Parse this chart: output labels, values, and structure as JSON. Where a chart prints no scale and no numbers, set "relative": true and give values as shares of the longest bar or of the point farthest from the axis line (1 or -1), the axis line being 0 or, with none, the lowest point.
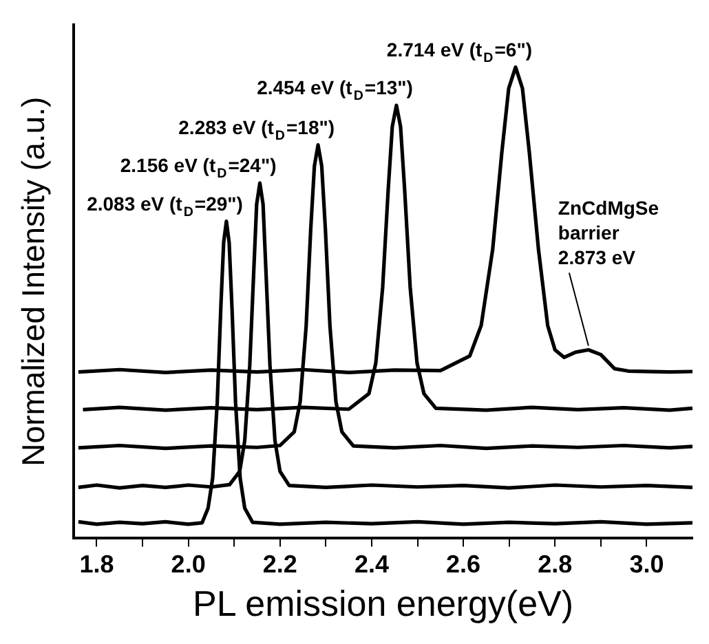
{
  "chart_data": {
    "type": "line",
    "relative": true,
    "xlabel": "PL emission energy(eV)",
    "ylabel": "Normalized Intensity (a.u.)",
    "xlim": [
      1.75,
      3.1
    ],
    "xticks": [
      {
        "value": 1.8,
        "label": "1.8"
      },
      {
        "value": 1.9,
        "label": null
      },
      {
        "value": 2.0,
        "label": "2.0"
      },
      {
        "value": 2.1,
        "label": null
      },
      {
        "value": 2.2,
        "label": "2.2"
      },
      {
        "value": 2.3,
        "label": null
      },
      {
        "value": 2.4,
        "label": "2.4"
      },
      {
        "value": 2.5,
        "label": null
      },
      {
        "value": 2.6,
        "label": "2.6"
      },
      {
        "value": 2.7,
        "label": null
      },
      {
        "value": 2.8,
        "label": "2.8"
      },
      {
        "value": 2.9,
        "label": null
      },
      {
        "value": 3.0,
        "label": "3.0"
      }
    ],
    "grid": false,
    "legend": false,
    "marker": "none",
    "line_style": "solid",
    "series": [
      {
        "color": "#000000",
        "x": [
          1.76,
          1.8,
          1.85,
          1.9,
          1.95,
          2.0,
          2.03,
          2.043,
          2.053,
          2.063,
          2.071,
          2.077,
          2.083,
          2.089,
          2.095,
          2.103,
          2.113,
          2.123,
          2.14,
          2.2,
          2.3,
          2.4,
          2.5,
          2.6,
          2.7,
          2.8,
          2.9,
          3.0,
          3.1
        ],
        "values": [
          0.035,
          0.03,
          0.034,
          0.031,
          0.035,
          0.03,
          0.033,
          0.064,
          0.128,
          0.288,
          0.494,
          0.628,
          0.673,
          0.628,
          0.494,
          0.288,
          0.128,
          0.064,
          0.034,
          0.03,
          0.034,
          0.031,
          0.035,
          0.03,
          0.034,
          0.031,
          0.035,
          0.03,
          0.033
        ]
      },
      {
        "color": "#000000",
        "x": [
          1.76,
          1.8,
          1.85,
          1.9,
          1.95,
          2.0,
          2.05,
          2.09,
          2.112,
          2.123,
          2.134,
          2.143,
          2.149,
          2.156,
          2.163,
          2.169,
          2.178,
          2.189,
          2.2,
          2.22,
          2.3,
          2.4,
          2.5,
          2.6,
          2.7,
          2.8,
          2.9,
          3.0,
          3.1
        ],
        "values": [
          0.108,
          0.113,
          0.107,
          0.112,
          0.108,
          0.113,
          0.109,
          0.114,
          0.142,
          0.207,
          0.368,
          0.574,
          0.709,
          0.754,
          0.709,
          0.574,
          0.368,
          0.207,
          0.142,
          0.112,
          0.108,
          0.113,
          0.109,
          0.112,
          0.107,
          0.113,
          0.109,
          0.112,
          0.108
        ]
      },
      {
        "color": "#000000",
        "x": [
          1.76,
          1.85,
          1.95,
          2.05,
          2.15,
          2.2,
          2.231,
          2.244,
          2.257,
          2.267,
          2.275,
          2.283,
          2.291,
          2.299,
          2.309,
          2.322,
          2.335,
          2.36,
          2.45,
          2.55,
          2.65,
          2.75,
          2.85,
          2.95,
          3.05,
          3.1
        ],
        "values": [
          0.192,
          0.197,
          0.191,
          0.196,
          0.193,
          0.197,
          0.226,
          0.29,
          0.45,
          0.656,
          0.79,
          0.835,
          0.79,
          0.656,
          0.45,
          0.29,
          0.226,
          0.196,
          0.192,
          0.197,
          0.191,
          0.196,
          0.193,
          0.197,
          0.192,
          0.195
        ]
      },
      {
        "color": "#000000",
        "x": [
          1.77,
          1.85,
          1.95,
          2.05,
          2.15,
          2.25,
          2.35,
          2.394,
          2.409,
          2.424,
          2.436,
          2.445,
          2.454,
          2.463,
          2.472,
          2.484,
          2.499,
          2.514,
          2.54,
          2.65,
          2.75,
          2.85,
          2.95,
          3.05,
          3.1
        ],
        "values": [
          0.273,
          0.278,
          0.272,
          0.277,
          0.273,
          0.278,
          0.274,
          0.307,
          0.372,
          0.533,
          0.739,
          0.874,
          0.919,
          0.874,
          0.739,
          0.533,
          0.372,
          0.307,
          0.276,
          0.272,
          0.278,
          0.273,
          0.277,
          0.272,
          0.276
        ]
      },
      {
        "color": "#000000",
        "x": [
          1.76,
          1.85,
          1.95,
          2.05,
          2.15,
          2.25,
          2.35,
          2.45,
          2.55,
          2.614,
          2.639,
          2.664,
          2.684,
          2.699,
          2.714,
          2.729,
          2.744,
          2.764,
          2.784,
          2.8,
          2.82,
          2.845,
          2.873,
          2.9,
          2.93,
          2.96,
          3.05,
          3.1
        ],
        "values": [
          0.353,
          0.358,
          0.352,
          0.357,
          0.353,
          0.358,
          0.352,
          0.357,
          0.356,
          0.387,
          0.452,
          0.613,
          0.819,
          0.955,
          1,
          0.955,
          0.819,
          0.613,
          0.452,
          0.4,
          0.384,
          0.395,
          0.4,
          0.39,
          0.36,
          0.355,
          0.353,
          0.354
        ]
      }
    ],
    "annotations": [
      {
        "text": "2.083 eV (t$_{D}$=29\")",
        "x": 2.083,
        "y": 0.673
      },
      {
        "text": "2.156 eV (t$_{D}$=24\")",
        "x": 2.156,
        "y": 0.754
      },
      {
        "text": "2.283 eV (t$_{D}$=18\")",
        "x": 2.283,
        "y": 0.835
      },
      {
        "text": "2.454 eV (t$_{D}$=13\")",
        "x": 2.454,
        "y": 0.919
      },
      {
        "text": "2.714 eV (t$_{D}$=6\")",
        "x": 2.714,
        "y": 1
      },
      {
        "text": "ZnCdMgSe\nbarrier\n2.873 eV",
        "x": 2.873,
        "y": 0.4
      }
    ]
  }
}
